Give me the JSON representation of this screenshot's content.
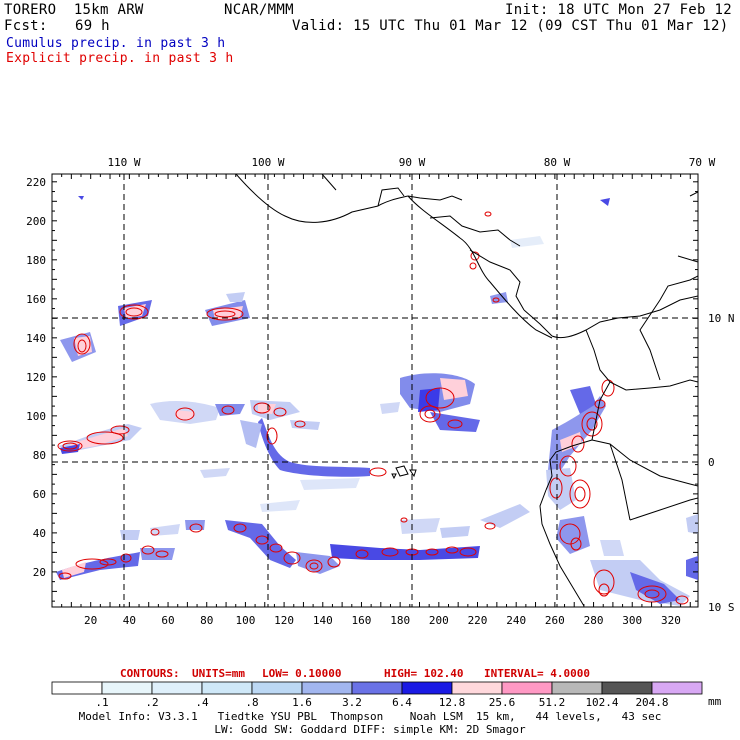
{
  "header": {
    "model": "TORERO  15km ARW",
    "org": "NCAR/MMM",
    "init": "Init: 18 UTC Mon 27 Feb 12",
    "fcst_label": "Fcst:",
    "fcst_value": "69 h",
    "valid": "Valid: 15 UTC Thu 01 Mar 12 (09 CST Thu 01 Mar 12)",
    "cumulus": "Cumulus precip. in past 3 h",
    "explicit": "Explicit precip. in past 3 h"
  },
  "colors": {
    "cumulus_text": "#0000c0",
    "explicit_text": "#e00000",
    "contour": "#e00000",
    "coast": "#000000"
  },
  "lon_labels": [
    "110 W",
    "100 W",
    "90 W",
    "80 W",
    "70 W"
  ],
  "lat_labels": [
    "10 N",
    "0",
    "10 S"
  ],
  "x_ticks": [
    "20",
    "40",
    "60",
    "80",
    "100",
    "120",
    "140",
    "160",
    "180",
    "200",
    "220",
    "240",
    "260",
    "280",
    "300",
    "320"
  ],
  "y_ticks": [
    "20",
    "40",
    "60",
    "80",
    "100",
    "120",
    "140",
    "160",
    "180",
    "200",
    "220"
  ],
  "contours_line": {
    "label": "CONTOURS:",
    "units": "UNITS=mm",
    "low": "LOW= 0.10000",
    "high": "HIGH= 102.40",
    "interval": "INTERVAL= 4.0000"
  },
  "colorbar": {
    "labels": [
      ".1",
      ".2",
      ".4",
      ".8",
      "1.6",
      "3.2",
      "6.4",
      "12.8",
      "25.6",
      "51.2",
      "102.4",
      "204.8"
    ],
    "units": "mm",
    "colors": [
      "#ffffff",
      "#e8f6fb",
      "#dff0fb",
      "#cfe8f8",
      "#bcd8f4",
      "#a2b6ef",
      "#6a72e6",
      "#1a1ae4",
      "#ffd8dc",
      "#ff99c4",
      "#b8b8b8",
      "#555555",
      "#d8a8f4"
    ]
  },
  "footer": {
    "line1": "Model Info: V3.3.1   Tiedtke YSU PBL  Thompson    Noah LSM  15 km,   44 levels,   43 sec",
    "line2": "LW: Godd SW: Goddard DIFF: simple KM: 2D Smagor"
  }
}
